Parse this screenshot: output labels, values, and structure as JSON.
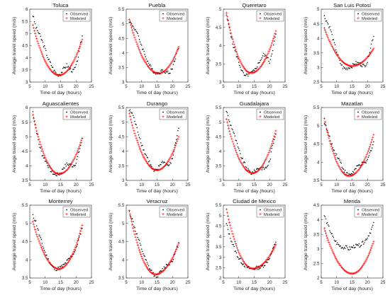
{
  "colors": {
    "observed": "#000000",
    "modeled": "#ff0000",
    "axis": "#262626"
  },
  "chart_data": [
    {
      "type": "scatter",
      "title": "Toluca",
      "xlabel": "Time of day (hours)",
      "ylabel": "Average travel speed (m/s)",
      "xlim": [
        5,
        25
      ],
      "ylim": [
        3,
        6
      ],
      "xticks": [
        "5",
        "10",
        "15",
        "20",
        "25"
      ],
      "yticks": [
        "3",
        "3.5",
        "4",
        "4.5",
        "5",
        "5.5",
        "6"
      ],
      "legend": [
        "Observed",
        "Modeled"
      ],
      "legend_position": "top-right",
      "observed_anchors": [
        [
          6,
          5.75
        ],
        [
          7,
          5.25
        ],
        [
          8,
          5.0
        ],
        [
          9,
          4.7
        ],
        [
          10,
          4.35
        ],
        [
          11,
          3.95
        ],
        [
          12,
          3.7
        ],
        [
          13,
          3.45
        ],
        [
          14,
          3.3
        ],
        [
          15,
          3.35
        ],
        [
          16,
          3.55
        ],
        [
          17,
          3.7
        ],
        [
          18,
          3.55
        ],
        [
          19,
          3.45
        ],
        [
          20,
          3.65
        ],
        [
          21,
          4.2
        ],
        [
          22,
          4.9
        ]
      ],
      "modeled_fit": {
        "vertex_x": 14.5,
        "vertex_y": 3.28,
        "x_range": [
          6,
          22
        ],
        "left_at_start": 5.35,
        "right_at_end": 4.75
      }
    },
    {
      "type": "scatter",
      "title": "Puebla",
      "xlabel": "Time of day (hours)",
      "ylabel": "Average travel speed (m/s)",
      "xlim": [
        5,
        25
      ],
      "ylim": [
        3,
        5.5
      ],
      "xticks": [
        "5",
        "10",
        "15",
        "20",
        "25"
      ],
      "yticks": [
        "3",
        "3.5",
        "4",
        "4.5",
        "5",
        "5.5"
      ],
      "legend": [
        "Observed",
        "Modeled"
      ],
      "legend_position": "top-right",
      "observed_anchors": [
        [
          6,
          5.1
        ],
        [
          7,
          4.95
        ],
        [
          8,
          4.8
        ],
        [
          9,
          4.55
        ],
        [
          10,
          4.25
        ],
        [
          11,
          3.95
        ],
        [
          12,
          3.7
        ],
        [
          13,
          3.5
        ],
        [
          14,
          3.35
        ],
        [
          15,
          3.3
        ],
        [
          16,
          3.35
        ],
        [
          17,
          3.4
        ],
        [
          18,
          3.35
        ],
        [
          19,
          3.3
        ],
        [
          20,
          3.5
        ],
        [
          21,
          3.85
        ],
        [
          22,
          4.2
        ]
      ],
      "modeled_fit": {
        "vertex_x": 15.5,
        "vertex_y": 3.3,
        "x_range": [
          6,
          22
        ],
        "left_at_start": 5.15,
        "right_at_end": 4.2
      }
    },
    {
      "type": "scatter",
      "title": "Queretaro",
      "xlabel": "Time of day (hours)",
      "ylabel": "Average travel speed (m/s)",
      "xlim": [
        5,
        25
      ],
      "ylim": [
        3,
        5
      ],
      "xticks": [
        "5",
        "10",
        "15",
        "20",
        "25"
      ],
      "yticks": [
        "3",
        "3.5",
        "4",
        "4.5",
        "5"
      ],
      "legend": [
        "Observed",
        "Modeled"
      ],
      "legend_position": "top-right",
      "observed_anchors": [
        [
          6,
          4.8
        ],
        [
          7,
          4.5
        ],
        [
          8,
          4.05
        ],
        [
          9,
          3.8
        ],
        [
          10,
          3.55
        ],
        [
          11,
          3.3
        ],
        [
          12,
          3.15
        ],
        [
          13,
          3.2
        ],
        [
          14,
          3.25
        ],
        [
          15,
          3.3
        ],
        [
          16,
          3.45
        ],
        [
          17,
          3.6
        ],
        [
          18,
          3.75
        ],
        [
          19,
          3.7
        ],
        [
          20,
          3.55
        ],
        [
          21,
          3.9
        ],
        [
          22,
          4.3
        ]
      ],
      "modeled_fit": {
        "vertex_x": 14.0,
        "vertex_y": 3.25,
        "x_range": [
          6,
          22
        ],
        "left_at_start": 4.9,
        "right_at_end": 4.4
      }
    },
    {
      "type": "scatter",
      "title": "San Luis Potosi",
      "xlabel": "Time of day (hours)",
      "ylabel": "Average travel speed (m/s)",
      "xlim": [
        5,
        25
      ],
      "ylim": [
        2.5,
        5
      ],
      "xticks": [
        "5",
        "10",
        "15",
        "20",
        "25"
      ],
      "yticks": [
        "2.5",
        "3",
        "3.5",
        "4",
        "4.5",
        "5"
      ],
      "legend": [
        "Observed",
        "Modeled"
      ],
      "legend_position": "top-right",
      "observed_anchors": [
        [
          6,
          4.75
        ],
        [
          7,
          4.55
        ],
        [
          8,
          4.3
        ],
        [
          9,
          3.9
        ],
        [
          10,
          3.55
        ],
        [
          11,
          3.2
        ],
        [
          12,
          3.0
        ],
        [
          13,
          2.95
        ],
        [
          14,
          3.0
        ],
        [
          15,
          3.05
        ],
        [
          16,
          3.15
        ],
        [
          17,
          3.15
        ],
        [
          18,
          3.1
        ],
        [
          19,
          3.05
        ],
        [
          20,
          3.2
        ],
        [
          21,
          3.7
        ],
        [
          22,
          4.1
        ]
      ],
      "modeled_fit": {
        "vertex_x": 15.0,
        "vertex_y": 3.05,
        "x_range": [
          6,
          22
        ],
        "left_at_start": 4.35,
        "right_at_end": 3.65
      }
    },
    {
      "type": "scatter",
      "title": "Aguascalientes",
      "xlabel": "Time of day (hours)",
      "ylabel": "Average travel speed (m/s)",
      "xlim": [
        5,
        25
      ],
      "ylim": [
        3.5,
        6
      ],
      "xticks": [
        "5",
        "10",
        "15",
        "20",
        "25"
      ],
      "yticks": [
        "3.5",
        "4",
        "4.5",
        "5",
        "5.5",
        "6"
      ],
      "legend": [
        "Observed",
        "Modeled"
      ],
      "legend_position": "top-right",
      "observed_anchors": [
        [
          6,
          5.85
        ],
        [
          7,
          5.3
        ],
        [
          8,
          4.75
        ],
        [
          9,
          4.4
        ],
        [
          10,
          4.2
        ],
        [
          11,
          4.0
        ],
        [
          12,
          3.8
        ],
        [
          13,
          3.7
        ],
        [
          14,
          3.7
        ],
        [
          15,
          3.75
        ],
        [
          16,
          3.95
        ],
        [
          17,
          4.05
        ],
        [
          18,
          4.05
        ],
        [
          19,
          4.0
        ],
        [
          20,
          4.1
        ],
        [
          21,
          4.5
        ],
        [
          22,
          4.9
        ]
      ],
      "modeled_fit": {
        "vertex_x": 14.5,
        "vertex_y": 3.72,
        "x_range": [
          6,
          22
        ],
        "left_at_start": 5.75,
        "right_at_end": 4.95
      }
    },
    {
      "type": "scatter",
      "title": "Durango",
      "xlabel": "Time of day (hours)",
      "ylabel": "Average travel speed (m/s)",
      "xlim": [
        5,
        25
      ],
      "ylim": [
        3,
        5.5
      ],
      "xticks": [
        "5",
        "10",
        "15",
        "20",
        "25"
      ],
      "yticks": [
        "3",
        "3.5",
        "4",
        "4.5",
        "5",
        "5.5"
      ],
      "legend": [
        "Observed",
        "Modeled"
      ],
      "legend_position": "top-right",
      "observed_anchors": [
        [
          6,
          5.4
        ],
        [
          7,
          5.3
        ],
        [
          8,
          4.95
        ],
        [
          9,
          4.6
        ],
        [
          10,
          4.25
        ],
        [
          11,
          3.95
        ],
        [
          12,
          3.75
        ],
        [
          13,
          3.5
        ],
        [
          14,
          3.3
        ],
        [
          15,
          3.35
        ],
        [
          16,
          3.55
        ],
        [
          17,
          3.65
        ],
        [
          18,
          3.55
        ],
        [
          19,
          3.5
        ],
        [
          20,
          3.75
        ],
        [
          21,
          4.3
        ],
        [
          22,
          4.8
        ]
      ],
      "modeled_fit": {
        "vertex_x": 15.0,
        "vertex_y": 3.35,
        "x_range": [
          6,
          22
        ],
        "left_at_start": 5.3,
        "right_at_end": 4.5
      }
    },
    {
      "type": "scatter",
      "title": "Guadalajara",
      "xlabel": "Time of day (hours)",
      "ylabel": "Average travel speed (m/s)",
      "xlim": [
        5,
        25
      ],
      "ylim": [
        3,
        5.5
      ],
      "xticks": [
        "5",
        "10",
        "15",
        "20",
        "25"
      ],
      "yticks": [
        "3",
        "3.5",
        "4",
        "4.5",
        "5",
        "5.5"
      ],
      "legend": [
        "Observed",
        "Modeled"
      ],
      "legend_position": "top-right",
      "observed_anchors": [
        [
          6,
          5.4
        ],
        [
          7,
          5.0
        ],
        [
          8,
          4.75
        ],
        [
          9,
          4.4
        ],
        [
          10,
          4.05
        ],
        [
          11,
          3.75
        ],
        [
          12,
          3.55
        ],
        [
          13,
          3.35
        ],
        [
          14,
          3.25
        ],
        [
          15,
          3.3
        ],
        [
          16,
          3.4
        ],
        [
          17,
          3.45
        ],
        [
          18,
          3.4
        ],
        [
          19,
          3.45
        ],
        [
          20,
          3.65
        ],
        [
          21,
          4.2
        ],
        [
          22,
          4.65
        ]
      ],
      "modeled_fit": {
        "vertex_x": 14.5,
        "vertex_y": 3.25,
        "x_range": [
          6,
          22
        ],
        "left_at_start": 5.1,
        "right_at_end": 4.7
      }
    },
    {
      "type": "scatter",
      "title": "Mazatlan",
      "xlabel": "Time of day (hours)",
      "ylabel": "Average travel speed (m/s)",
      "xlim": [
        5,
        25
      ],
      "ylim": [
        3.5,
        5.5
      ],
      "xticks": [
        "5",
        "10",
        "15",
        "20",
        "25"
      ],
      "yticks": [
        "3.5",
        "4",
        "4.5",
        "5",
        "5.5"
      ],
      "legend": [
        "Observed",
        "Modeled"
      ],
      "legend_position": "top-right",
      "observed_anchors": [
        [
          6,
          5.1
        ],
        [
          7,
          4.85
        ],
        [
          8,
          4.6
        ],
        [
          9,
          4.35
        ],
        [
          10,
          4.2
        ],
        [
          11,
          4.05
        ],
        [
          12,
          3.85
        ],
        [
          13,
          3.7
        ],
        [
          14,
          3.65
        ],
        [
          15,
          3.7
        ],
        [
          16,
          3.8
        ],
        [
          17,
          3.9
        ],
        [
          18,
          3.95
        ],
        [
          19,
          3.95
        ],
        [
          20,
          4.05
        ],
        [
          21,
          4.3
        ],
        [
          22,
          4.55
        ]
      ],
      "modeled_fit": {
        "vertex_x": 14.0,
        "vertex_y": 3.62,
        "x_range": [
          6,
          22
        ],
        "left_at_start": 5.2,
        "right_at_end": 4.75
      }
    },
    {
      "type": "scatter",
      "title": "Monterrey",
      "xlabel": "Time of day (hours)",
      "ylabel": "Average travel speed (m/s)",
      "xlim": [
        5,
        25
      ],
      "ylim": [
        3.5,
        5.5
      ],
      "xticks": [
        "5",
        "10",
        "15",
        "20",
        "25"
      ],
      "yticks": [
        "3.5",
        "4",
        "4.5",
        "5",
        "5.5"
      ],
      "legend": [
        "Observed",
        "Modeled"
      ],
      "legend_position": "top-right",
      "observed_anchors": [
        [
          6,
          5.2
        ],
        [
          7,
          5.05
        ],
        [
          8,
          4.7
        ],
        [
          9,
          4.45
        ],
        [
          10,
          4.2
        ],
        [
          11,
          4.0
        ],
        [
          12,
          3.85
        ],
        [
          13,
          3.75
        ],
        [
          14,
          3.75
        ],
        [
          15,
          3.8
        ],
        [
          16,
          3.85
        ],
        [
          17,
          3.95
        ],
        [
          18,
          4.05
        ],
        [
          19,
          4.15
        ],
        [
          20,
          4.3
        ],
        [
          21,
          4.6
        ],
        [
          22,
          4.9
        ]
      ],
      "modeled_fit": {
        "vertex_x": 14.5,
        "vertex_y": 3.75,
        "x_range": [
          6,
          22
        ],
        "left_at_start": 5.05,
        "right_at_end": 4.95
      }
    },
    {
      "type": "scatter",
      "title": "Veracruz",
      "xlabel": "Time of day (hours)",
      "ylabel": "Average travel speed (m/s)",
      "xlim": [
        5,
        25
      ],
      "ylim": [
        3.5,
        5.5
      ],
      "xticks": [
        "5",
        "10",
        "15",
        "20",
        "25"
      ],
      "yticks": [
        "3.5",
        "4",
        "4.5",
        "5",
        "5.5"
      ],
      "legend": [
        "Observed",
        "Modeled"
      ],
      "legend_position": "top-right",
      "observed_anchors": [
        [
          6,
          5.3
        ],
        [
          7,
          5.1
        ],
        [
          8,
          4.8
        ],
        [
          9,
          4.55
        ],
        [
          10,
          4.3
        ],
        [
          11,
          4.05
        ],
        [
          12,
          3.85
        ],
        [
          13,
          3.7
        ],
        [
          14,
          3.6
        ],
        [
          15,
          3.55
        ],
        [
          16,
          3.65
        ],
        [
          17,
          3.75
        ],
        [
          18,
          3.85
        ],
        [
          19,
          3.9
        ],
        [
          20,
          4.0
        ],
        [
          21,
          4.2
        ],
        [
          22,
          4.45
        ]
      ],
      "modeled_fit": {
        "vertex_x": 14.5,
        "vertex_y": 3.6,
        "x_range": [
          6,
          22
        ],
        "left_at_start": 5.35,
        "right_at_end": 4.45
      }
    },
    {
      "type": "scatter",
      "title": "Ciudad de Mexico",
      "xlabel": "Time of day (hours)",
      "ylabel": "Average travel speed (m/s)",
      "xlim": [
        5,
        25
      ],
      "ylim": [
        2,
        5.5
      ],
      "xticks": [
        "5",
        "10",
        "15",
        "20",
        "25"
      ],
      "yticks": [
        "2",
        "2.5",
        "3",
        "3.5",
        "4",
        "4.5",
        "5",
        "5.5"
      ],
      "legend": [
        "Observed",
        "Modeled"
      ],
      "legend_position": "top-right",
      "observed_anchors": [
        [
          6,
          4.6
        ],
        [
          7,
          4.05
        ],
        [
          8,
          3.65
        ],
        [
          9,
          3.25
        ],
        [
          10,
          2.95
        ],
        [
          11,
          2.75
        ],
        [
          12,
          2.6
        ],
        [
          13,
          2.5
        ],
        [
          14,
          2.45
        ],
        [
          15,
          2.45
        ],
        [
          16,
          2.5
        ],
        [
          17,
          2.5
        ],
        [
          18,
          2.6
        ],
        [
          19,
          2.75
        ],
        [
          20,
          3.0
        ],
        [
          21,
          3.35
        ],
        [
          22,
          3.75
        ]
      ],
      "modeled_fit": {
        "vertex_x": 14.5,
        "vertex_y": 2.45,
        "x_range": [
          6,
          22
        ],
        "left_at_start": 5.3,
        "right_at_end": 3.6
      }
    },
    {
      "type": "scatter",
      "title": "Merida",
      "xlabel": "Time of day (hours)",
      "ylabel": "Average travel speed (m/s)",
      "xlim": [
        5,
        25
      ],
      "ylim": [
        2,
        4.5
      ],
      "xticks": [
        "5",
        "10",
        "15",
        "20",
        "25"
      ],
      "yticks": [
        "2",
        "2.5",
        "3",
        "3.5",
        "4",
        "4.5"
      ],
      "legend": [
        "Observed",
        "Modeled"
      ],
      "legend_position": "top-right",
      "observed_anchors": [
        [
          6,
          4.15
        ],
        [
          7,
          3.85
        ],
        [
          8,
          3.6
        ],
        [
          9,
          3.35
        ],
        [
          10,
          3.2
        ],
        [
          11,
          3.1
        ],
        [
          12,
          3.05
        ],
        [
          13,
          3.05
        ],
        [
          14,
          3.0
        ],
        [
          15,
          3.05
        ],
        [
          16,
          3.1
        ],
        [
          17,
          3.1
        ],
        [
          18,
          3.15
        ],
        [
          19,
          3.25
        ],
        [
          20,
          3.4
        ],
        [
          21,
          3.6
        ],
        [
          22,
          3.85
        ]
      ],
      "modeled_fit": {
        "vertex_x": 15.0,
        "vertex_y": 2.15,
        "x_range": [
          6,
          22
        ],
        "left_at_start": 3.7,
        "right_at_end": 3.25
      }
    }
  ]
}
